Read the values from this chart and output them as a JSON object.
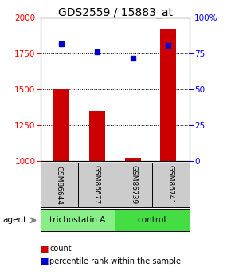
{
  "title": "GDS2559 / 15883_at",
  "samples": [
    "GSM86644",
    "GSM86677",
    "GSM86739",
    "GSM86741"
  ],
  "counts": [
    1500,
    1350,
    1020,
    1920
  ],
  "percentile_ranks": [
    82,
    76,
    72,
    81
  ],
  "ylim_left": [
    1000,
    2000
  ],
  "ylim_right": [
    0,
    100
  ],
  "yticks_left": [
    1000,
    1250,
    1500,
    1750,
    2000
  ],
  "yticks_right": [
    0,
    25,
    50,
    75,
    100
  ],
  "ytick_labels_right": [
    "0",
    "25",
    "50",
    "75",
    "100%"
  ],
  "bar_color": "#cc0000",
  "dot_color": "#0000cc",
  "bar_width": 0.45,
  "groups": [
    {
      "label": "trichostatin A",
      "samples": [
        0,
        1
      ],
      "color": "#88ee88"
    },
    {
      "label": "control",
      "samples": [
        2,
        3
      ],
      "color": "#44dd44"
    }
  ],
  "agent_label": "agent",
  "legend_count_label": "count",
  "legend_pct_label": "percentile rank within the sample",
  "bg_color": "#ffffff",
  "label_box_color": "#cccccc",
  "title_fontsize": 10,
  "tick_fontsize": 7.5,
  "legend_fontsize": 7
}
